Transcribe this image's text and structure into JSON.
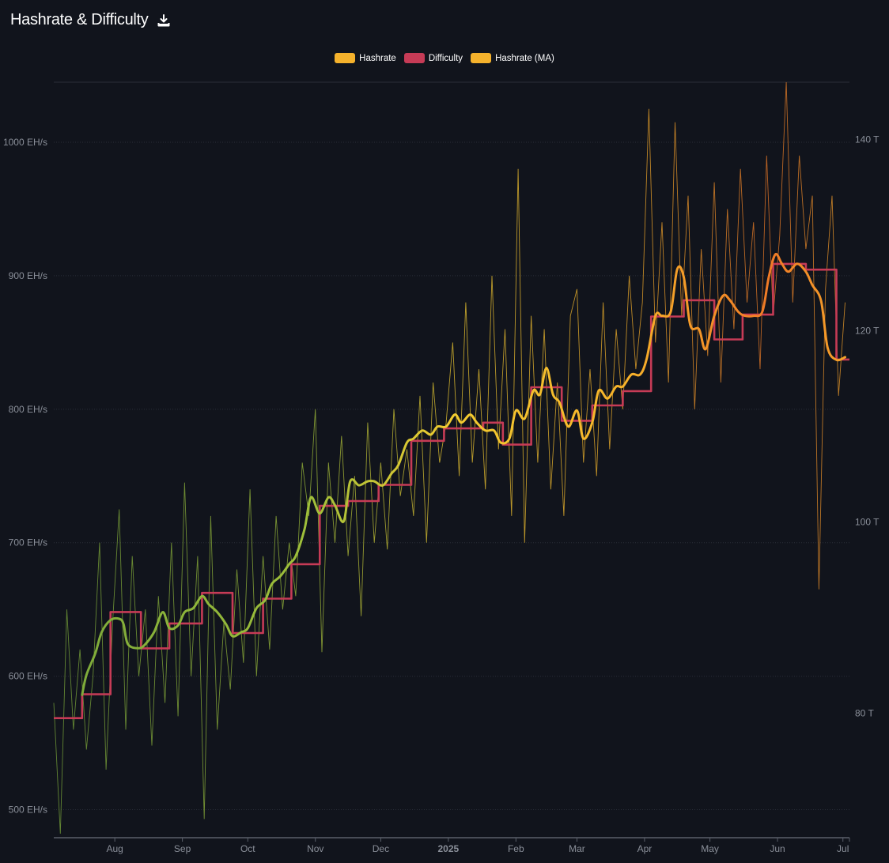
{
  "title": "Hashrate & Difficulty",
  "download_icon": "download-icon",
  "legend": [
    {
      "label": "Hashrate",
      "color": "#f5b22c"
    },
    {
      "label": "Difficulty",
      "color": "#c63b56"
    },
    {
      "label": "Hashrate (MA)",
      "color": "#f5b22c"
    }
  ],
  "colors": {
    "background": "#11141c",
    "grid": "#2a2e38",
    "gradient_start": "#7aa83a",
    "gradient_mid": "#f2cc30",
    "gradient_end": "#f07a26",
    "difficulty": "#c63b56"
  },
  "chart_data": {
    "type": "line",
    "title": "Hashrate & Difficulty",
    "grid": true,
    "legend_position": "top-center",
    "x_range": [
      "2024-07-04",
      "2025-07-04"
    ],
    "x_ticks": [
      {
        "label": "Aug",
        "date": "2024-08-01"
      },
      {
        "label": "Sep",
        "date": "2024-09-01"
      },
      {
        "label": "Oct",
        "date": "2024-10-01"
      },
      {
        "label": "Nov",
        "date": "2024-11-01"
      },
      {
        "label": "Dec",
        "date": "2024-12-01"
      },
      {
        "label": "2025",
        "date": "2025-01-01",
        "bold": true
      },
      {
        "label": "Feb",
        "date": "2025-02-01"
      },
      {
        "label": "Mar",
        "date": "2025-03-01"
      },
      {
        "label": "Apr",
        "date": "2025-04-01"
      },
      {
        "label": "May",
        "date": "2025-05-01"
      },
      {
        "label": "Jun",
        "date": "2025-06-01"
      },
      {
        "label": "Jul",
        "date": "2025-07-01"
      }
    ],
    "y_left": {
      "unit": "EH/s",
      "range": [
        479,
        1045
      ],
      "ticks": [
        {
          "value": 500,
          "label": "500 EH/s"
        },
        {
          "value": 600,
          "label": "600 EH/s"
        },
        {
          "value": 700,
          "label": "700 EH/s"
        },
        {
          "value": 800,
          "label": "800 EH/s"
        },
        {
          "value": 900,
          "label": "900 EH/s"
        },
        {
          "value": 1000,
          "label": "1000 EH/s"
        }
      ]
    },
    "y_right": {
      "unit": "T",
      "range": [
        67,
        146
      ],
      "ticks": [
        {
          "value": 80,
          "label": "80 T"
        },
        {
          "value": 100,
          "label": "100 T"
        },
        {
          "value": 120,
          "label": "120 T"
        },
        {
          "value": 140,
          "label": "140 T"
        }
      ]
    },
    "series": [
      {
        "name": "Hashrate",
        "axis": "left",
        "dates": [
          "2024-07-04",
          "2024-07-07",
          "2024-07-10",
          "2024-07-13",
          "2024-07-16",
          "2024-07-19",
          "2024-07-22",
          "2024-07-25",
          "2024-07-28",
          "2024-07-31",
          "2024-08-03",
          "2024-08-06",
          "2024-08-09",
          "2024-08-12",
          "2024-08-15",
          "2024-08-18",
          "2024-08-21",
          "2024-08-24",
          "2024-08-27",
          "2024-08-30",
          "2024-09-02",
          "2024-09-05",
          "2024-09-08",
          "2024-09-11",
          "2024-09-14",
          "2024-09-17",
          "2024-09-20",
          "2024-09-23",
          "2024-09-26",
          "2024-09-29",
          "2024-10-02",
          "2024-10-05",
          "2024-10-08",
          "2024-10-11",
          "2024-10-14",
          "2024-10-17",
          "2024-10-20",
          "2024-10-23",
          "2024-10-26",
          "2024-10-29",
          "2024-11-01",
          "2024-11-04",
          "2024-11-07",
          "2024-11-10",
          "2024-11-13",
          "2024-11-16",
          "2024-11-19",
          "2024-11-22",
          "2024-11-25",
          "2024-11-28",
          "2024-12-01",
          "2024-12-04",
          "2024-12-07",
          "2024-12-10",
          "2024-12-13",
          "2024-12-16",
          "2024-12-19",
          "2024-12-22",
          "2024-12-25",
          "2024-12-28",
          "2024-12-31",
          "2025-01-03",
          "2025-01-06",
          "2025-01-09",
          "2025-01-12",
          "2025-01-15",
          "2025-01-18",
          "2025-01-21",
          "2025-01-24",
          "2025-01-27",
          "2025-01-30",
          "2025-02-02",
          "2025-02-05",
          "2025-02-08",
          "2025-02-11",
          "2025-02-14",
          "2025-02-17",
          "2025-02-20",
          "2025-02-23",
          "2025-02-26",
          "2025-03-01",
          "2025-03-04",
          "2025-03-07",
          "2025-03-10",
          "2025-03-13",
          "2025-03-16",
          "2025-03-19",
          "2025-03-22",
          "2025-03-25",
          "2025-03-28",
          "2025-03-31",
          "2025-04-03",
          "2025-04-06",
          "2025-04-09",
          "2025-04-12",
          "2025-04-15",
          "2025-04-18",
          "2025-04-21",
          "2025-04-24",
          "2025-04-27",
          "2025-04-30",
          "2025-05-03",
          "2025-05-06",
          "2025-05-09",
          "2025-05-12",
          "2025-05-15",
          "2025-05-18",
          "2025-05-21",
          "2025-05-24",
          "2025-05-27",
          "2025-05-30",
          "2025-06-02",
          "2025-06-05",
          "2025-06-08",
          "2025-06-11",
          "2025-06-14",
          "2025-06-17",
          "2025-06-20",
          "2025-06-23",
          "2025-06-26",
          "2025-06-29",
          "2025-07-02"
        ],
        "values": [
          580,
          482,
          650,
          560,
          620,
          545,
          600,
          700,
          530,
          640,
          725,
          560,
          690,
          600,
          650,
          548,
          660,
          580,
          700,
          570,
          745,
          600,
          690,
          493,
          720,
          560,
          640,
          590,
          680,
          610,
          740,
          600,
          690,
          620,
          720,
          650,
          700,
          660,
          760,
          720,
          800,
          618,
          760,
          700,
          780,
          690,
          750,
          645,
          790,
          700,
          760,
          695,
          800,
          735,
          770,
          720,
          810,
          700,
          820,
          760,
          790,
          850,
          750,
          880,
          760,
          830,
          740,
          900,
          770,
          860,
          720,
          980,
          700,
          870,
          760,
          860,
          740,
          820,
          720,
          870,
          890,
          760,
          830,
          750,
          880,
          770,
          860,
          800,
          900,
          830,
          880,
          1025,
          850,
          940,
          820,
          1015,
          870,
          960,
          800,
          920,
          840,
          970,
          820,
          950,
          860,
          980,
          880,
          940,
          830,
          990,
          870,
          930,
          1045,
          880,
          990,
          920,
          960,
          665,
          890,
          960,
          810,
          880
        ]
      },
      {
        "name": "Difficulty",
        "axis": "right",
        "step": true,
        "dates": [
          "2024-07-04",
          "2024-07-17",
          "2024-07-30",
          "2024-08-13",
          "2024-08-26",
          "2024-09-10",
          "2024-09-24",
          "2024-10-08",
          "2024-10-21",
          "2024-11-03",
          "2024-11-16",
          "2024-11-30",
          "2024-12-15",
          "2024-12-30",
          "2025-01-17",
          "2025-01-26",
          "2025-02-08",
          "2025-02-22",
          "2025-03-08",
          "2025-03-22",
          "2025-04-04",
          "2025-04-19",
          "2025-05-03",
          "2025-05-16",
          "2025-05-30",
          "2025-06-14",
          "2025-06-28"
        ],
        "values": [
          79.5,
          82.0,
          90.6,
          86.8,
          89.4,
          92.6,
          88.4,
          92.0,
          95.6,
          101.7,
          102.2,
          103.9,
          108.5,
          109.8,
          110.4,
          108.1,
          114.1,
          110.6,
          112.2,
          113.7,
          121.5,
          123.2,
          119.1,
          121.7,
          127.0,
          126.4,
          117.0
        ]
      },
      {
        "name": "Hashrate (MA)",
        "axis": "left",
        "dates": [
          "2024-07-17",
          "2024-07-19",
          "2024-07-23",
          "2024-07-26",
          "2024-07-30",
          "2024-08-03",
          "2024-08-05",
          "2024-08-07",
          "2024-08-12",
          "2024-08-15",
          "2024-08-19",
          "2024-08-23",
          "2024-08-26",
          "2024-08-30",
          "2024-09-02",
          "2024-09-06",
          "2024-09-10",
          "2024-09-13",
          "2024-09-17",
          "2024-09-21",
          "2024-09-24",
          "2024-09-28",
          "2024-10-01",
          "2024-10-05",
          "2024-10-09",
          "2024-10-12",
          "2024-10-16",
          "2024-10-20",
          "2024-10-23",
          "2024-10-27",
          "2024-10-30",
          "2024-11-03",
          "2024-11-07",
          "2024-11-10",
          "2024-11-14",
          "2024-11-17",
          "2024-11-21",
          "2024-11-25",
          "2024-11-28",
          "2024-12-02",
          "2024-12-06",
          "2024-12-09",
          "2024-12-13",
          "2024-12-16",
          "2024-12-20",
          "2024-12-24",
          "2024-12-27",
          "2024-12-31",
          "2025-01-04",
          "2025-01-07",
          "2025-01-11",
          "2025-01-14",
          "2025-01-18",
          "2025-01-22",
          "2025-01-25",
          "2025-01-29",
          "2025-02-01",
          "2025-02-05",
          "2025-02-09",
          "2025-02-12",
          "2025-02-15",
          "2025-02-18",
          "2025-02-21",
          "2025-02-25",
          "2025-03-01",
          "2025-03-04",
          "2025-03-08",
          "2025-03-11",
          "2025-03-15",
          "2025-03-19",
          "2025-03-22",
          "2025-03-26",
          "2025-03-30",
          "2025-04-02",
          "2025-04-06",
          "2025-04-09",
          "2025-04-13",
          "2025-04-16",
          "2025-04-19",
          "2025-04-22",
          "2025-04-26",
          "2025-04-29",
          "2025-05-03",
          "2025-05-07",
          "2025-05-10",
          "2025-05-14",
          "2025-05-17",
          "2025-05-21",
          "2025-05-25",
          "2025-05-28",
          "2025-05-31",
          "2025-06-03",
          "2025-06-06",
          "2025-06-10",
          "2025-06-14",
          "2025-06-17",
          "2025-06-21",
          "2025-06-24",
          "2025-06-28",
          "2025-07-02"
        ],
        "values": [
          586,
          601,
          617,
          633,
          642,
          643,
          639,
          624,
          621,
          624,
          633,
          648,
          636,
          638,
          648,
          651,
          660,
          654,
          648,
          639,
          630,
          633,
          636,
          651,
          657,
          669,
          675,
          684,
          690,
          710,
          734,
          722,
          734,
          728,
          716,
          746,
          743,
          746,
          746,
          743,
          752,
          758,
          775,
          778,
          784,
          781,
          787,
          787,
          796,
          790,
          796,
          790,
          784,
          784,
          775,
          778,
          799,
          793,
          814,
          811,
          831,
          811,
          805,
          787,
          799,
          778,
          790,
          814,
          808,
          817,
          817,
          826,
          826,
          838,
          870,
          870,
          873,
          905,
          899,
          863,
          860,
          845,
          870,
          885,
          882,
          873,
          870,
          870,
          873,
          899,
          916,
          909,
          903,
          909,
          903,
          893,
          881,
          846,
          837,
          839
        ]
      }
    ]
  }
}
